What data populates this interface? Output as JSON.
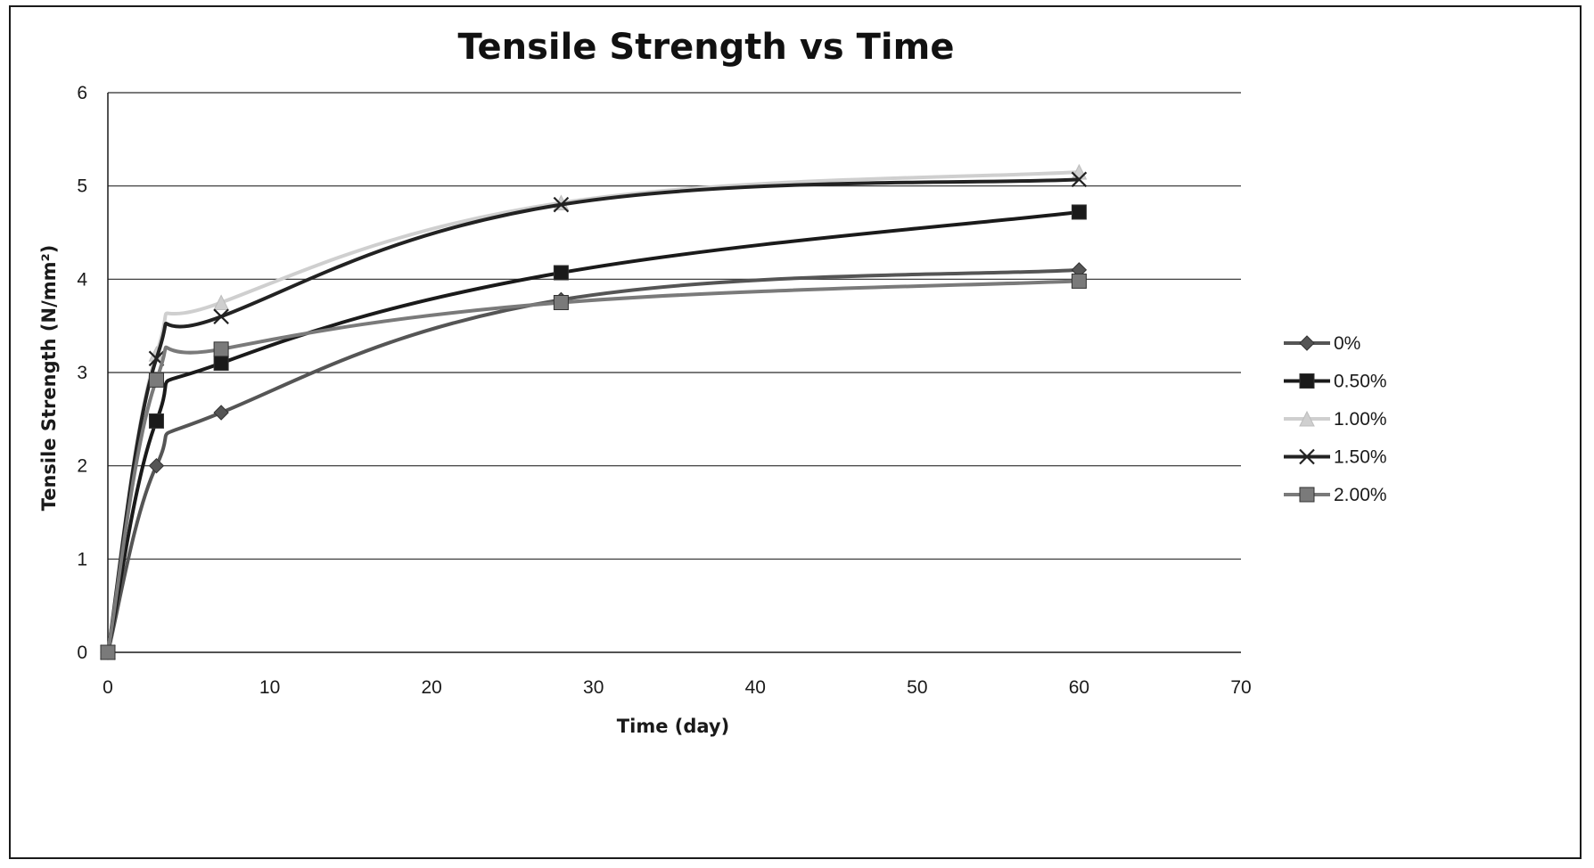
{
  "chart_data": {
    "type": "line",
    "title": "Tensile Strength vs Time",
    "xlabel": "Time (day)",
    "ylabel": "Tensile Strength (N/mm²)",
    "xlim": [
      0,
      70
    ],
    "ylim": [
      0,
      6
    ],
    "xticks": [
      0,
      10,
      20,
      30,
      40,
      50,
      60,
      70
    ],
    "yticks": [
      0,
      1,
      2,
      3,
      4,
      5,
      6
    ],
    "grid": "horizontal",
    "legend": "right",
    "series": [
      {
        "name": "0%",
        "marker": "diamond",
        "color": "#555555",
        "x": [
          0,
          3,
          7,
          28,
          60
        ],
        "y": [
          0,
          2.0,
          2.57,
          3.78,
          4.1
        ]
      },
      {
        "name": "0.50%",
        "marker": "square",
        "color": "#1a1a1a",
        "x": [
          0,
          3,
          7,
          28,
          60
        ],
        "y": [
          0,
          2.48,
          3.1,
          4.07,
          4.72
        ]
      },
      {
        "name": "1.00%",
        "marker": "triangle",
        "color": "#cfcfcf",
        "x": [
          0,
          3,
          7,
          28,
          60
        ],
        "y": [
          0,
          3.2,
          3.75,
          4.82,
          5.15
        ]
      },
      {
        "name": "1.50%",
        "marker": "x",
        "color": "#222222",
        "x": [
          0,
          3,
          7,
          28,
          60
        ],
        "y": [
          0,
          3.15,
          3.6,
          4.8,
          5.07
        ]
      },
      {
        "name": "2.00%",
        "marker": "square",
        "color": "#7a7a7a",
        "x": [
          0,
          3,
          7,
          28,
          60
        ],
        "y": [
          0,
          2.92,
          3.25,
          3.75,
          3.98
        ]
      }
    ]
  }
}
